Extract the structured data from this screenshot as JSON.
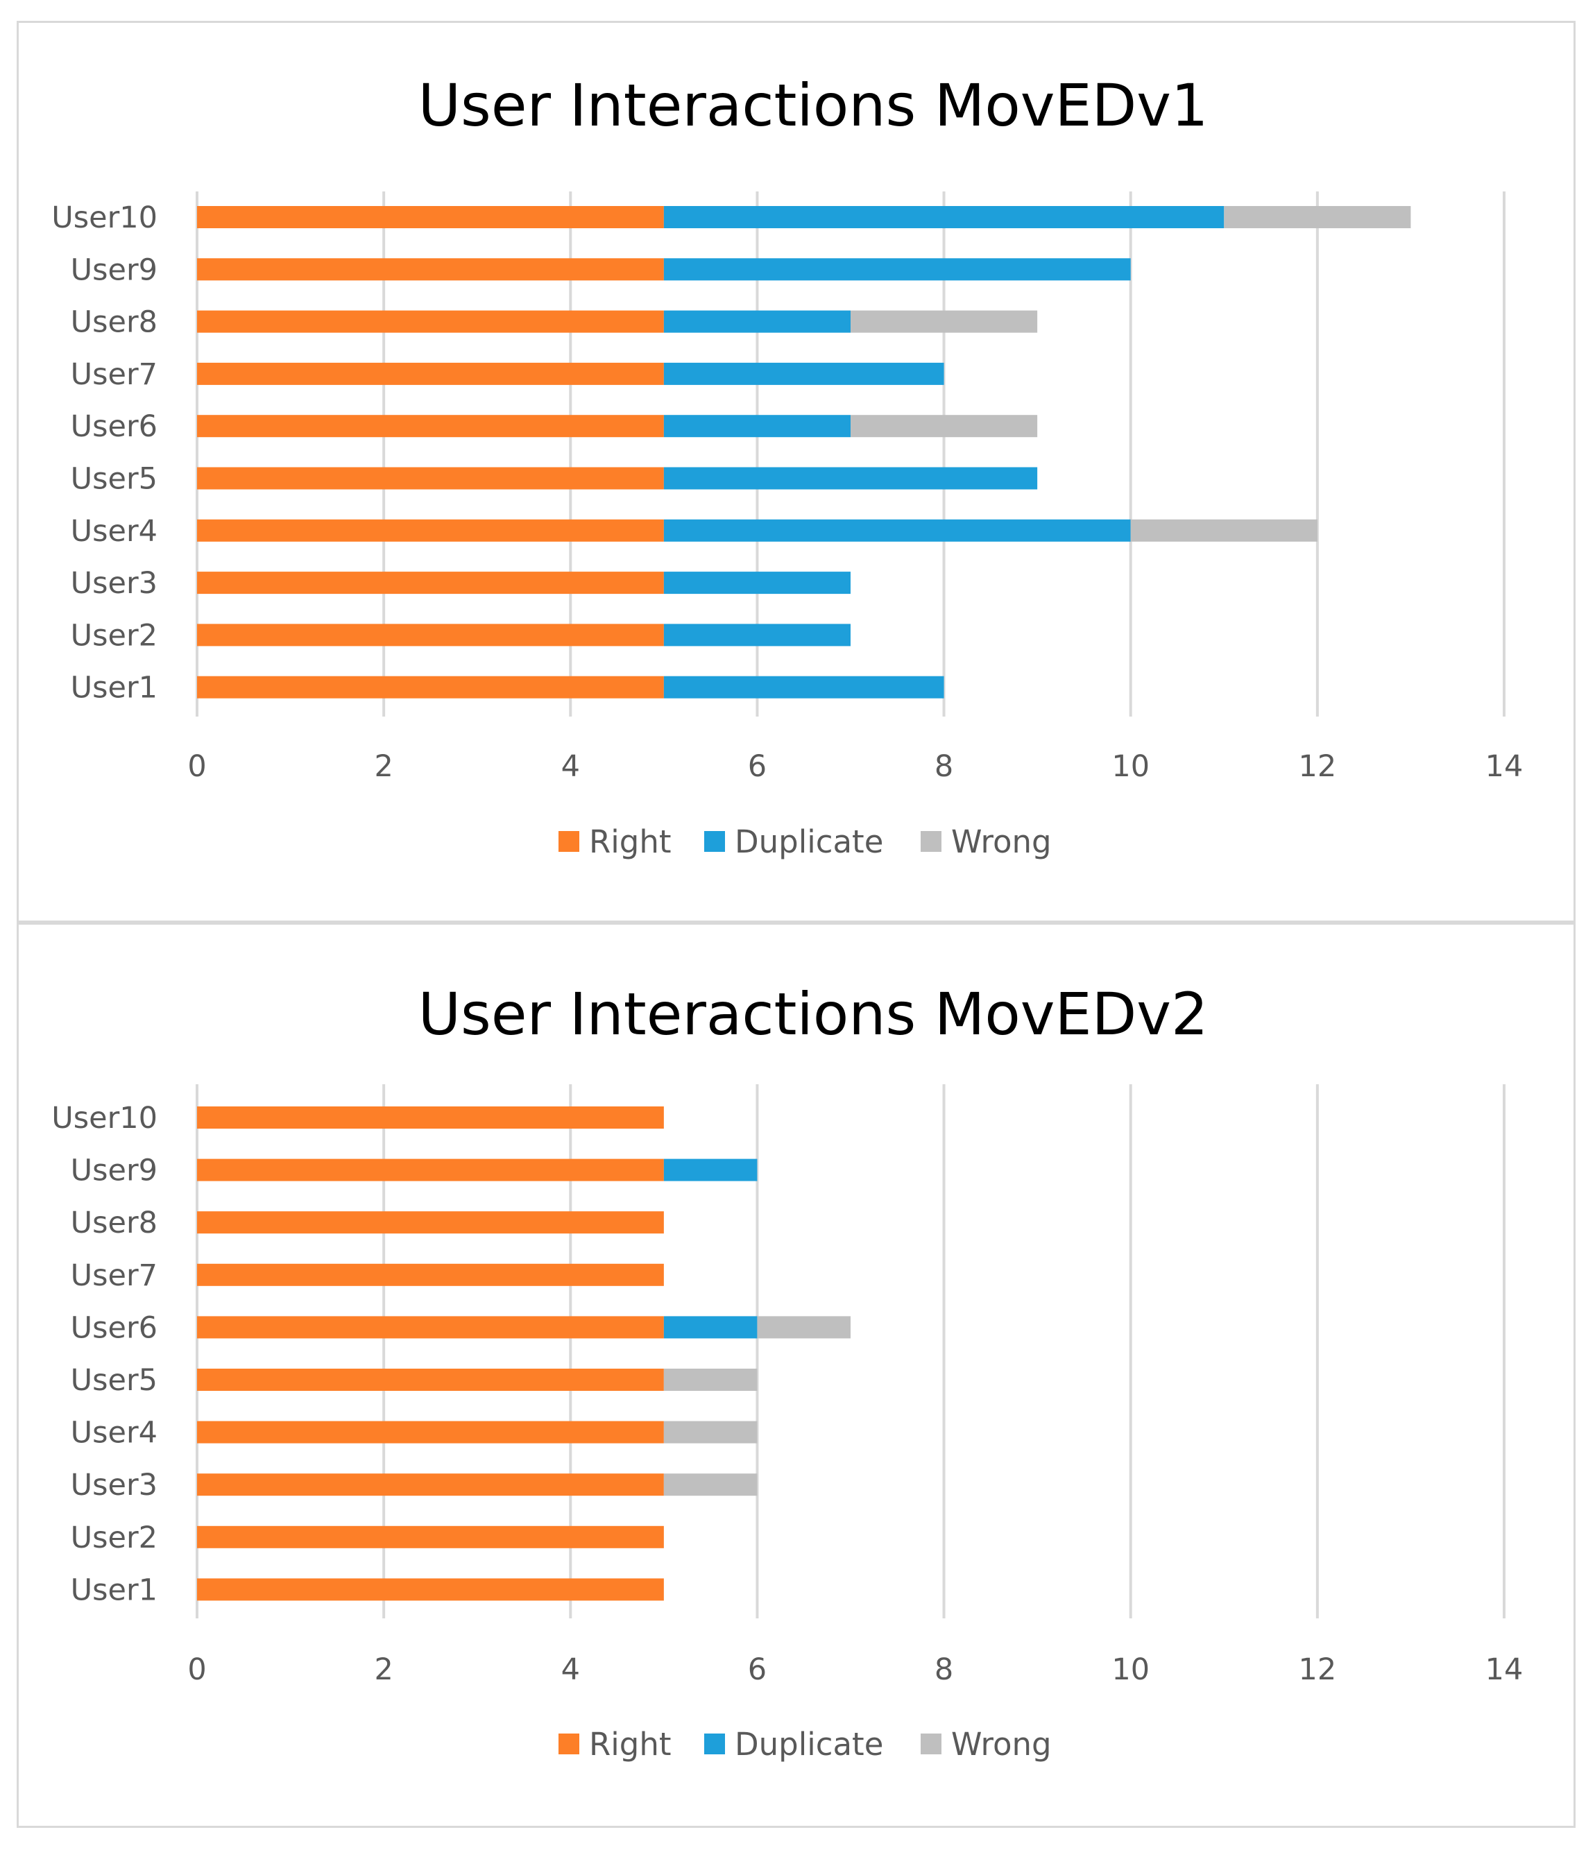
{
  "colors": {
    "Right": "#fd7f28",
    "Duplicate": "#1e9fda",
    "Wrong": "#bfbfbf"
  },
  "chart_data": [
    {
      "type": "bar",
      "orientation": "horizontal",
      "stacked": true,
      "title": "User Interactions MovEDv1",
      "categories": [
        "User1",
        "User2",
        "User3",
        "User4",
        "User5",
        "User6",
        "User7",
        "User8",
        "User9",
        "User10"
      ],
      "series": [
        {
          "name": "Right",
          "values": [
            5,
            5,
            5,
            5,
            5,
            5,
            5,
            5,
            5,
            5
          ]
        },
        {
          "name": "Duplicate",
          "values": [
            3,
            2,
            2,
            5,
            4,
            2,
            3,
            2,
            5,
            6
          ]
        },
        {
          "name": "Wrong",
          "values": [
            0,
            0,
            0,
            2,
            0,
            2,
            0,
            2,
            0,
            2
          ]
        }
      ],
      "xlim": [
        0,
        14
      ],
      "xticks": [
        0,
        2,
        4,
        6,
        8,
        10,
        12,
        14
      ],
      "grid": true,
      "legend": "bottom",
      "xlabel": "",
      "ylabel": ""
    },
    {
      "type": "bar",
      "orientation": "horizontal",
      "stacked": true,
      "title": "User Interactions MovEDv2",
      "categories": [
        "User1",
        "User2",
        "User3",
        "User4",
        "User5",
        "User6",
        "User7",
        "User8",
        "User9",
        "User10"
      ],
      "series": [
        {
          "name": "Right",
          "values": [
            5,
            5,
            5,
            5,
            5,
            5,
            5,
            5,
            5,
            5
          ]
        },
        {
          "name": "Duplicate",
          "values": [
            0,
            0,
            0,
            0,
            0,
            1,
            0,
            0,
            1,
            0
          ]
        },
        {
          "name": "Wrong",
          "values": [
            0,
            0,
            1,
            1,
            1,
            1,
            0,
            0,
            0,
            0
          ]
        }
      ],
      "xlim": [
        0,
        14
      ],
      "xticks": [
        0,
        2,
        4,
        6,
        8,
        10,
        12,
        14
      ],
      "grid": true,
      "legend": "bottom",
      "xlabel": "",
      "ylabel": ""
    }
  ]
}
